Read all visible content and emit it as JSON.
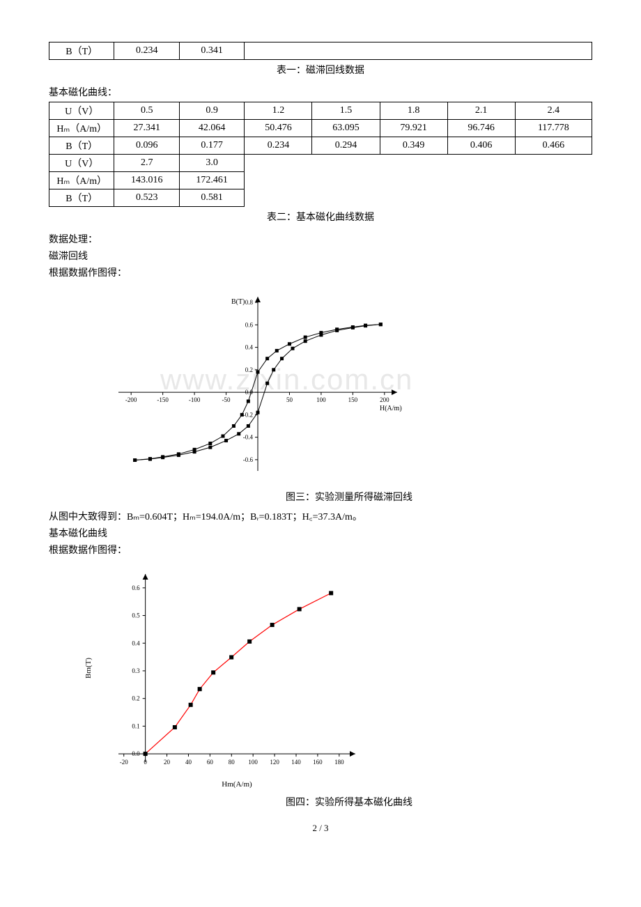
{
  "table1_tail": {
    "row_label": "B（T）",
    "cells": [
      "0.234",
      "0.341"
    ]
  },
  "caption1": "表一：磁滞回线数据",
  "section2_title": "基本磁化曲线：",
  "table2": {
    "row1_label": "U（V）",
    "row1": [
      "0.5",
      "0.9",
      "1.2",
      "1.5",
      "1.8",
      "2.1",
      "2.4"
    ],
    "row2_label": "Hₘ（A/m）",
    "row2": [
      "27.341",
      "42.064",
      "50.476",
      "63.095",
      "79.921",
      "96.746",
      "117.778"
    ],
    "row3_label": "B（T）",
    "row3": [
      "0.096",
      "0.177",
      "0.234",
      "0.294",
      "0.349",
      "0.406",
      "0.466"
    ],
    "row4_label": "U（V）",
    "row4": [
      "2.7",
      "3.0"
    ],
    "row5_label": "Hₘ（A/m）",
    "row5": [
      "143.016",
      "172.461"
    ],
    "row6_label": "B（T）",
    "row6": [
      "0.523",
      "0.581"
    ]
  },
  "caption2": "表二：基本磁化曲线数据",
  "proc_title": "数据处理：",
  "proc_sub1": "磁滞回线",
  "proc_sub1_note": "根据数据作图得：",
  "chart1": {
    "type": "scatter-line",
    "xlabel": "H(A/m)",
    "ylabel": "B(T)",
    "xlim": [
      -220,
      220
    ],
    "ylim": [
      -0.7,
      0.85
    ],
    "xticks": [
      -200,
      -150,
      -100,
      -50,
      0,
      50,
      100,
      150,
      200
    ],
    "yticks": [
      -0.6,
      -0.4,
      -0.2,
      0.0,
      0.2,
      0.4,
      0.6,
      0.8
    ],
    "label_fontsize": 10,
    "tick_fontsize": 9,
    "marker": "square",
    "marker_size": 5,
    "marker_color": "#000000",
    "line_color": "#000000",
    "line_width": 1,
    "background_color": "#ffffff",
    "series_upper": [
      [
        -194,
        -0.604
      ],
      [
        -170,
        -0.592
      ],
      [
        -150,
        -0.575
      ],
      [
        -125,
        -0.55
      ],
      [
        -100,
        -0.51
      ],
      [
        -75,
        -0.455
      ],
      [
        -55,
        -0.39
      ],
      [
        -38,
        -0.3
      ],
      [
        -25,
        -0.2
      ],
      [
        -15,
        -0.08
      ],
      [
        0,
        0.18
      ],
      [
        15,
        0.3
      ],
      [
        30,
        0.37
      ],
      [
        50,
        0.43
      ],
      [
        75,
        0.49
      ],
      [
        100,
        0.53
      ],
      [
        125,
        0.56
      ],
      [
        150,
        0.58
      ],
      [
        170,
        0.595
      ],
      [
        194,
        0.604
      ]
    ],
    "series_lower": [
      [
        -194,
        -0.604
      ],
      [
        -170,
        -0.595
      ],
      [
        -150,
        -0.58
      ],
      [
        -125,
        -0.56
      ],
      [
        -100,
        -0.53
      ],
      [
        -75,
        -0.49
      ],
      [
        -50,
        -0.43
      ],
      [
        -30,
        -0.37
      ],
      [
        -15,
        -0.3
      ],
      [
        0,
        -0.18
      ],
      [
        15,
        0.08
      ],
      [
        25,
        0.2
      ],
      [
        38,
        0.3
      ],
      [
        55,
        0.39
      ],
      [
        75,
        0.455
      ],
      [
        100,
        0.51
      ],
      [
        125,
        0.55
      ],
      [
        150,
        0.575
      ],
      [
        170,
        0.592
      ],
      [
        194,
        0.604
      ]
    ]
  },
  "chart1_caption": "图三：实验测量所得磁滞回线",
  "conclusion1": "从图中大致得到：Bₘ=0.604T；Hₘ=194.0A/m；Bᵣ=0.183T；H꜀=37.3A/m。",
  "proc_sub2": "基本磁化曲线",
  "proc_sub2_note": "根据数据作图得：",
  "chart2": {
    "type": "scatter-line",
    "xlabel": "Hm(A/m)",
    "ylabel": "Bm(T)",
    "xlim": [
      -25,
      195
    ],
    "ylim": [
      -0.03,
      0.65
    ],
    "xticks": [
      -20,
      0,
      20,
      40,
      60,
      80,
      100,
      120,
      140,
      160,
      180
    ],
    "yticks": [
      0.0,
      0.1,
      0.2,
      0.3,
      0.4,
      0.5,
      0.6
    ],
    "label_fontsize": 11,
    "tick_fontsize": 9,
    "marker": "square",
    "marker_size": 6,
    "marker_color": "#000000",
    "line_color": "#ff0000",
    "line_width": 1.2,
    "background_color": "#ffffff",
    "points": [
      [
        0,
        0
      ],
      [
        27.341,
        0.096
      ],
      [
        42.064,
        0.177
      ],
      [
        50.476,
        0.234
      ],
      [
        63.095,
        0.294
      ],
      [
        79.921,
        0.349
      ],
      [
        96.746,
        0.406
      ],
      [
        117.778,
        0.466
      ],
      [
        143.016,
        0.523
      ],
      [
        172.461,
        0.581
      ]
    ]
  },
  "chart2_caption": "图四：实验所得基本磁化曲线",
  "page_number": "2 / 3",
  "watermark_text": "www.zixin.com.cn"
}
